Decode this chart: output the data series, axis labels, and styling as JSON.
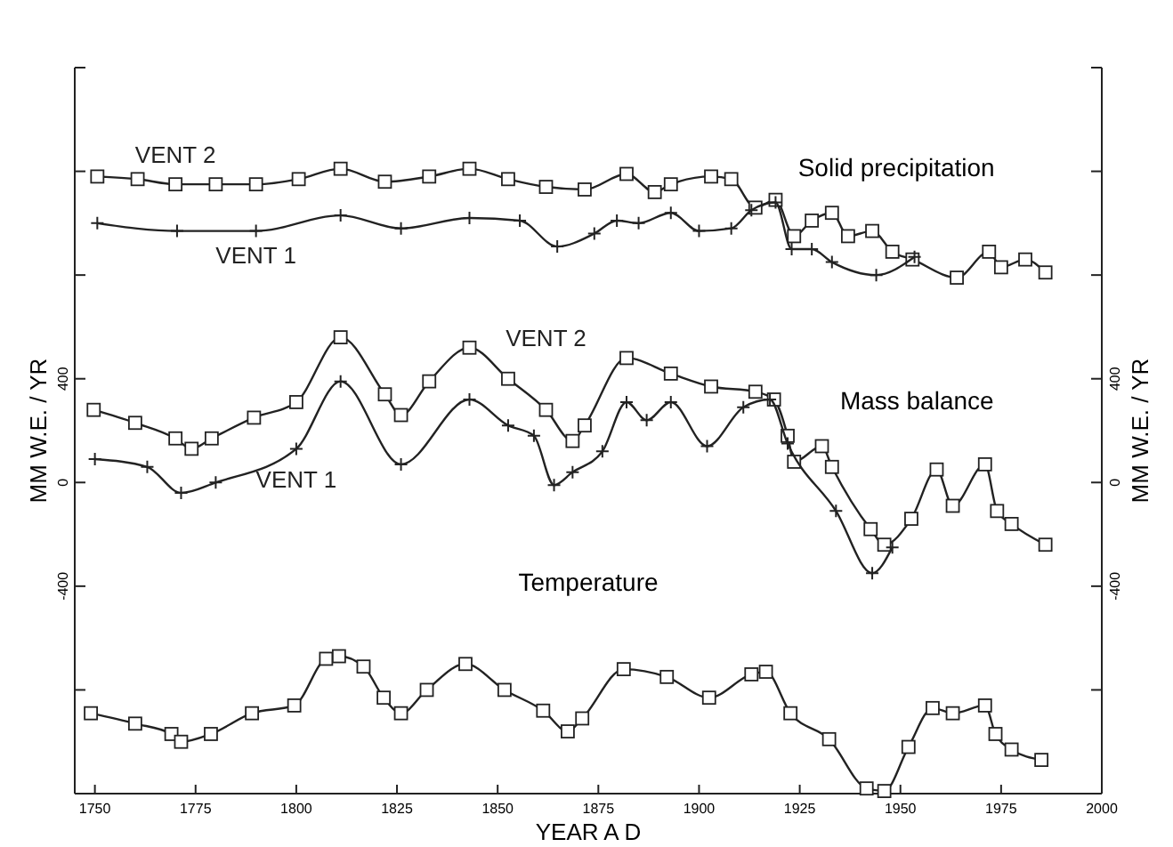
{
  "chart_data": {
    "type": "line",
    "xlabel": "YEAR A D",
    "ylabel": "MM W.E. / YR",
    "y2label": "MM W.E. / YR",
    "xlim": [
      1745,
      2000
    ],
    "xticks": [
      1750,
      1775,
      1800,
      1825,
      1850,
      1875,
      1900,
      1925,
      1950,
      1975,
      2000
    ],
    "ylim": [
      -1200,
      1600
    ],
    "yticks": [
      {
        "value": -800,
        "label": null
      },
      {
        "value": -400,
        "label": "-400"
      },
      {
        "value": 0,
        "label": "0"
      },
      {
        "value": 400,
        "label": "400"
      },
      {
        "value": 800,
        "label": null
      },
      {
        "value": 1200,
        "label": null
      }
    ],
    "y2lim": [
      -1200,
      1600
    ],
    "y2ticks": [
      {
        "value": -800,
        "label": null
      },
      {
        "value": -400,
        "label": "-400"
      },
      {
        "value": 0,
        "label": "0"
      },
      {
        "value": 400,
        "label": "400"
      },
      {
        "value": 800,
        "label": null
      },
      {
        "value": 1200,
        "label": null
      }
    ],
    "grid": false,
    "line_style": "solid",
    "annotations": [
      "Solid precipitation",
      "Mass balance",
      "Temperature"
    ],
    "series": [
      {
        "name": "VENT 2",
        "color": "#222222",
        "marker": "square",
        "x": [
          1750.6,
          1760.6,
          1770,
          1780,
          1790,
          1800.6,
          1811,
          1822,
          1833,
          1843,
          1852.6,
          1862,
          1871.6,
          1882,
          1889,
          1893,
          1903,
          1908,
          1914,
          1919,
          1923.6,
          1928,
          1933,
          1937,
          1943,
          1948,
          1953,
          1964,
          1972,
          1975,
          1981,
          1986
        ],
        "values": [
          1180,
          1170,
          1150,
          1150,
          1150,
          1170,
          1210,
          1160,
          1180,
          1210,
          1170,
          1140,
          1130,
          1190,
          1120,
          1150,
          1180,
          1170,
          1060,
          1090,
          950,
          1010,
          1040,
          950,
          970,
          890,
          860,
          790,
          890,
          830,
          860,
          810
        ]
      },
      {
        "name": "VENT 1",
        "color": "#222222",
        "marker": "cross",
        "x": [
          1750.6,
          1770.4,
          1790,
          1811,
          1826,
          1843,
          1855.5,
          1864.8,
          1874,
          1879.6,
          1885,
          1893,
          1900,
          1908,
          1913,
          1919,
          1923,
          1928,
          1933,
          1944,
          1953.5
        ],
        "values": [
          1000,
          970,
          970,
          1030,
          980,
          1020,
          1010,
          910,
          960,
          1010,
          1000,
          1040,
          970,
          980,
          1050,
          1080,
          900,
          900,
          850,
          800,
          870
        ]
      },
      {
        "name": "VENT 2",
        "color": "#222222",
        "marker": "square",
        "x": [
          1749.7,
          1760,
          1770,
          1774,
          1779,
          1789.5,
          1800,
          1811,
          1822,
          1826,
          1833,
          1843,
          1852.6,
          1862,
          1868.6,
          1871.6,
          1882,
          1893,
          1903,
          1914,
          1918.6,
          1922,
          1923.6,
          1930.5,
          1933,
          1942.6,
          1946,
          1952.7,
          1959,
          1963,
          1971,
          1974,
          1977.6,
          1986
        ],
        "values": [
          280,
          230,
          170,
          130,
          170,
          250,
          310,
          560,
          340,
          260,
          390,
          520,
          400,
          280,
          160,
          220,
          480,
          420,
          370,
          350,
          320,
          180,
          80,
          140,
          60,
          -180,
          -240,
          -140,
          50,
          -90,
          70,
          -110,
          -160,
          -240
        ]
      },
      {
        "name": "VENT 1",
        "color": "#222222",
        "marker": "cross",
        "x": [
          1750,
          1763,
          1771.4,
          1780,
          1800,
          1811,
          1826,
          1843,
          1852.6,
          1859,
          1864,
          1868.6,
          1876,
          1882,
          1887,
          1893,
          1902,
          1911,
          1917.6,
          1922,
          1934,
          1943,
          1948
        ],
        "values": [
          90,
          60,
          -40,
          0,
          130,
          390,
          70,
          320,
          220,
          180,
          -10,
          40,
          120,
          310,
          240,
          310,
          140,
          290,
          320,
          150,
          -110,
          -350,
          -250
        ]
      },
      {
        "color": "#222222",
        "marker": "square",
        "x": [
          1749,
          1760,
          1769,
          1771.4,
          1778.8,
          1789,
          1799.5,
          1807.4,
          1810.6,
          1816.7,
          1821.7,
          1826,
          1832.4,
          1842,
          1851.7,
          1861.3,
          1867.4,
          1871,
          1881.3,
          1892,
          1902.5,
          1913,
          1916.6,
          1922.7,
          1932.3,
          1941.6,
          1946,
          1952,
          1958,
          1963,
          1971,
          1973.6,
          1977.6,
          1985
        ],
        "values": [
          -890,
          -930,
          -970,
          -1000,
          -970,
          -890,
          -860,
          -680,
          -670,
          -710,
          -830,
          -890,
          -800,
          -700,
          -800,
          -880,
          -960,
          -910,
          -720,
          -750,
          -830,
          -740,
          -730,
          -890,
          -990,
          -1180,
          -1190,
          -1020,
          -870,
          -890,
          -860,
          -970,
          -1030,
          -1070
        ]
      }
    ]
  }
}
